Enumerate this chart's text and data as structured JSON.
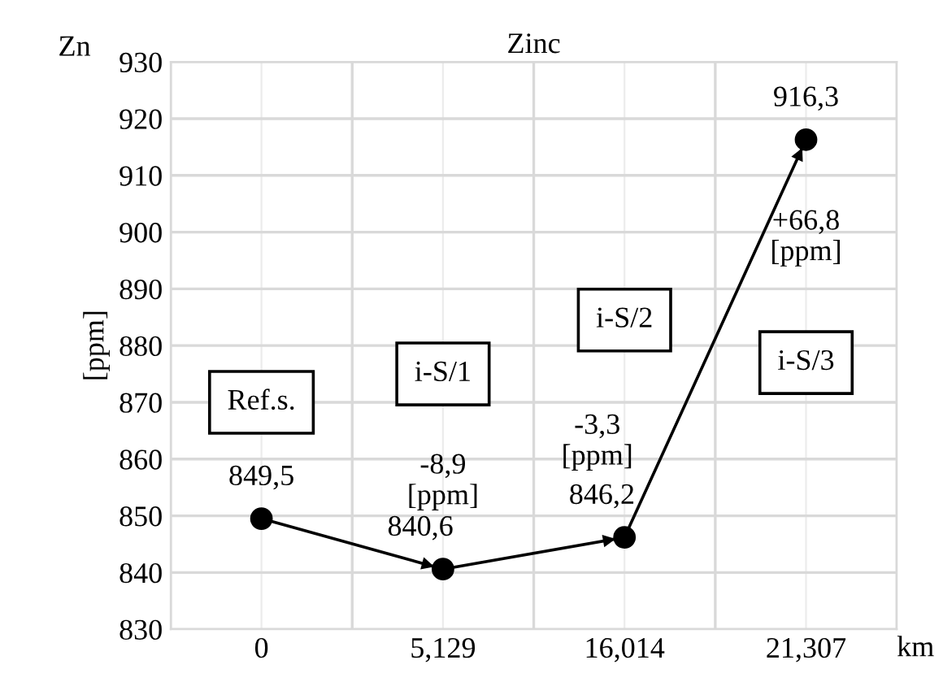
{
  "chart_data": {
    "type": "line",
    "title": "Zinc",
    "xlabel": "km",
    "ylabel": "[ppm]",
    "categories": [
      "0",
      "5,129",
      "16,014",
      "21,307"
    ],
    "series": [
      {
        "color": "#000000",
        "values": [
          849.5,
          840.6,
          846.2,
          916.3
        ],
        "value_labels": [
          "849,5",
          "840,6",
          "846,2",
          "916,3"
        ]
      }
    ],
    "annotations": [
      "Zn",
      "Ref.s.",
      "i-S/1",
      "i-S/2",
      "i-S/3",
      "-8,9\n[ppm]",
      "-3,3\n[ppm]",
      "+66,8\n[ppm]"
    ],
    "ylim": [
      830,
      930
    ],
    "yticks": [
      830,
      840,
      850,
      860,
      870,
      880,
      890,
      900,
      910,
      920,
      930
    ],
    "grid": true,
    "marker": "circle",
    "line_style": "solid",
    "legend": false
  }
}
